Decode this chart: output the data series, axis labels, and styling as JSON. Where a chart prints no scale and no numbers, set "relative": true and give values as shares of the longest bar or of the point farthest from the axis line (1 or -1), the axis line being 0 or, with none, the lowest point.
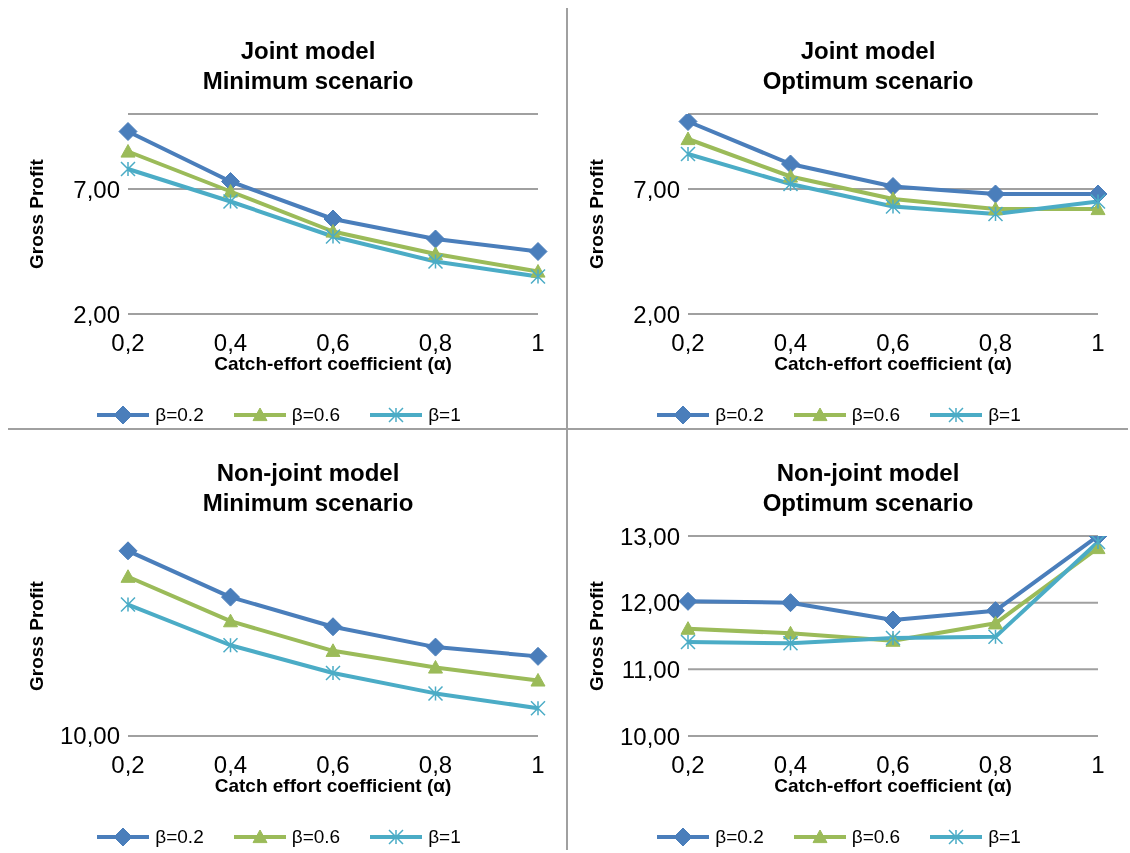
{
  "chart_data": [
    {
      "type": "line",
      "title": "Joint  model",
      "subtitle": "Minimum scenario",
      "ylabel": "Gross Profit",
      "xlabel": "Catch-effort coefficient (α)",
      "categories": [
        "0,2",
        "0,4",
        "0,6",
        "0,8",
        "1"
      ],
      "series": [
        {
          "name": "β=0.2",
          "color": "#4a7ebb",
          "marker": "diamond",
          "values": [
            9.3,
            7.3,
            5.8,
            5.0,
            4.5
          ]
        },
        {
          "name": "β=0.6",
          "color": "#9bbb59",
          "marker": "triangle",
          "values": [
            8.5,
            6.9,
            5.3,
            4.4,
            3.7
          ]
        },
        {
          "name": "β=1",
          "color": "#4bacc6",
          "marker": "cross",
          "values": [
            7.8,
            6.5,
            5.1,
            4.1,
            3.5
          ]
        }
      ],
      "ylim": [
        2,
        10
      ],
      "yticks": [
        {
          "value": 2,
          "label": "2,00"
        },
        {
          "value": 7,
          "label": "7,00"
        }
      ],
      "grid": "y",
      "legend": "bottom"
    },
    {
      "type": "line",
      "title": "Joint  model",
      "subtitle": "Optimum scenario",
      "ylabel": "Gross Profit",
      "xlabel": "Catch-effort coefficient (α)",
      "categories": [
        "0,2",
        "0,4",
        "0,6",
        "0,8",
        "1"
      ],
      "series": [
        {
          "name": "β=0.2",
          "color": "#4a7ebb",
          "marker": "diamond",
          "values": [
            9.7,
            8.0,
            7.1,
            6.8,
            6.8
          ]
        },
        {
          "name": "β=0.6",
          "color": "#9bbb59",
          "marker": "triangle",
          "values": [
            9.0,
            7.5,
            6.6,
            6.2,
            6.2
          ]
        },
        {
          "name": "β=1",
          "color": "#4bacc6",
          "marker": "cross",
          "values": [
            8.4,
            7.2,
            6.3,
            6.0,
            6.5
          ]
        }
      ],
      "ylim": [
        2,
        10
      ],
      "yticks": [
        {
          "value": 2,
          "label": "2,00"
        },
        {
          "value": 7,
          "label": "7,00"
        }
      ],
      "grid": "y",
      "legend": "bottom"
    },
    {
      "type": "line",
      "title": "Non-joint  model",
      "subtitle": "Minimum scenario",
      "ylabel": "Gross Profit",
      "xlabel": "Catch effort coefficient (α)",
      "categories": [
        "0,2",
        "0,4",
        "0,6",
        "0,8",
        "1"
      ],
      "relative": true,
      "series": [
        {
          "name": "β=0.2",
          "color": "#4a7ebb",
          "marker": "diamond",
          "values": [
            1,
            0.75,
            0.59,
            0.48,
            0.43
          ]
        },
        {
          "name": "β=0.6",
          "color": "#9bbb59",
          "marker": "triangle",
          "values": [
            0.86,
            0.62,
            0.46,
            0.37,
            0.3
          ]
        },
        {
          "name": "β=1",
          "color": "#4bacc6",
          "marker": "cross",
          "values": [
            0.71,
            0.49,
            0.34,
            0.23,
            0.15
          ]
        }
      ],
      "annotations": [
        "10,00"
      ],
      "legend": "bottom"
    },
    {
      "type": "line",
      "title": "Non-joint  model",
      "subtitle": "Optimum scenario",
      "ylabel": "Gross Profit",
      "xlabel": "Catch-effort coefficient (α)",
      "categories": [
        "0,2",
        "0,4",
        "0,6",
        "0,8",
        "1"
      ],
      "series": [
        {
          "name": "β=0.2",
          "color": "#4a7ebb",
          "marker": "diamond",
          "values": [
            12.02,
            12.0,
            11.74,
            11.88,
            13.0
          ]
        },
        {
          "name": "β=0.6",
          "color": "#9bbb59",
          "marker": "triangle",
          "values": [
            11.61,
            11.54,
            11.43,
            11.69,
            12.82
          ]
        },
        {
          "name": "β=1",
          "color": "#4bacc6",
          "marker": "cross",
          "values": [
            11.41,
            11.39,
            11.47,
            11.49,
            12.91
          ]
        }
      ],
      "ylim": [
        10,
        13
      ],
      "yticks": [
        {
          "value": 10,
          "label": "10,00"
        },
        {
          "value": 11,
          "label": "11,00"
        },
        {
          "value": 12,
          "label": "12,00"
        },
        {
          "value": 13,
          "label": "13,00"
        }
      ],
      "grid": "y",
      "legend": "bottom"
    }
  ]
}
